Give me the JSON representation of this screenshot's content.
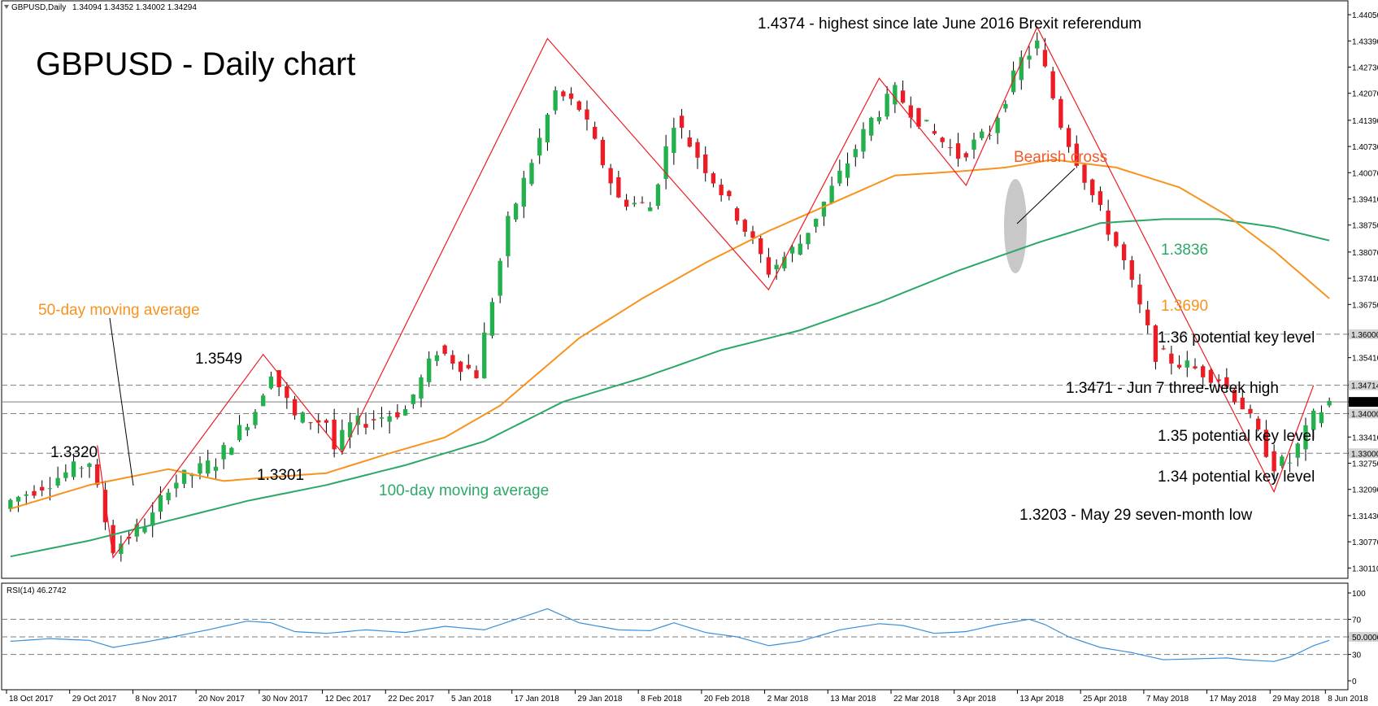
{
  "chart_data": {
    "type": "candlestick",
    "title": "GBPUSD - Daily chart",
    "header": {
      "symbol": "GBPUSD,Daily",
      "ohlc": "1.34094 1.34352 1.34002 1.34294",
      "rsi_label": "RSI(14) 46.2742"
    },
    "price_axis": {
      "ylim": [
        1.2985,
        1.444
      ],
      "ticks": [
        "1.44050",
        "1.43390",
        "1.42730",
        "1.42070",
        "1.41390",
        "1.40730",
        "1.40070",
        "1.39410",
        "1.38750",
        "1.38070",
        "1.37410",
        "1.36750",
        "1.36000",
        "1.35410",
        "1.34714",
        "1.34294",
        "1.34000",
        "1.33410",
        "1.33000",
        "1.32750",
        "1.32090",
        "1.31430",
        "1.30770",
        "1.30110"
      ],
      "ticks_values": [
        1.4405,
        1.4339,
        1.4273,
        1.4207,
        1.4139,
        1.4073,
        1.4007,
        1.3941,
        1.3875,
        1.3807,
        1.3741,
        1.3675,
        1.36,
        1.3541,
        1.34714,
        1.34294,
        1.34,
        1.3341,
        1.33,
        1.3275,
        1.3209,
        1.3143,
        1.3077,
        1.3011
      ],
      "boxed_labels": [
        "1.36000",
        "1.34714",
        "1.34294",
        "1.34000",
        "1.33000"
      ]
    },
    "rsi_axis": {
      "ylim": [
        0,
        100
      ],
      "ticks": [
        "100",
        "70",
        "50.0000",
        "30",
        "0"
      ],
      "ticks_values": [
        100,
        70,
        50,
        30,
        0
      ],
      "levels": [
        30,
        50,
        70
      ]
    },
    "x_labels": [
      "18 Oct 2017",
      "29 Oct 2017",
      "8 Nov 2017",
      "20 Nov 2017",
      "30 Nov 2017",
      "12 Dec 2017",
      "22 Dec 2017",
      "5 Jan 2018",
      "17 Jan 2018",
      "29 Jan 2018",
      "8 Feb 2018",
      "20 Feb 2018",
      "2 Mar 2018",
      "13 Mar 2018",
      "22 Mar 2018",
      "3 Apr 2018",
      "13 Apr 2018",
      "25 Apr 2018",
      "7 May 2018",
      "17 May 2018",
      "29 May 2018",
      "8 Jun 2018"
    ],
    "x_label_index": [
      0,
      8,
      16,
      24,
      32,
      40,
      48,
      56,
      64,
      72,
      80,
      88,
      96,
      104,
      112,
      120,
      128,
      136,
      144,
      152,
      160,
      168
    ],
    "bar_count": 168,
    "close_anchors": [
      [
        0,
        1.318
      ],
      [
        5,
        1.323
      ],
      [
        10,
        1.328
      ],
      [
        12,
        1.313
      ],
      [
        13,
        1.306
      ],
      [
        18,
        1.314
      ],
      [
        20,
        1.322
      ],
      [
        26,
        1.328
      ],
      [
        31,
        1.341
      ],
      [
        33,
        1.351
      ],
      [
        36,
        1.339
      ],
      [
        40,
        1.338
      ],
      [
        41,
        1.331
      ],
      [
        43,
        1.337
      ],
      [
        50,
        1.341
      ],
      [
        54,
        1.356
      ],
      [
        59,
        1.35
      ],
      [
        63,
        1.388
      ],
      [
        67,
        1.409
      ],
      [
        69,
        1.421
      ],
      [
        72,
        1.417
      ],
      [
        77,
        1.394
      ],
      [
        81,
        1.392
      ],
      [
        84,
        1.414
      ],
      [
        88,
        1.402
      ],
      [
        92,
        1.39
      ],
      [
        96,
        1.376
      ],
      [
        100,
        1.383
      ],
      [
        105,
        1.4
      ],
      [
        109,
        1.414
      ],
      [
        112,
        1.421
      ],
      [
        116,
        1.412
      ],
      [
        120,
        1.405
      ],
      [
        124,
        1.411
      ],
      [
        128,
        1.429
      ],
      [
        130,
        1.433
      ],
      [
        133,
        1.413
      ],
      [
        137,
        1.395
      ],
      [
        141,
        1.378
      ],
      [
        145,
        1.355
      ],
      [
        149,
        1.352
      ],
      [
        153,
        1.349
      ],
      [
        156,
        1.342
      ],
      [
        160,
        1.327
      ],
      [
        162,
        1.328
      ],
      [
        165,
        1.339
      ],
      [
        167,
        1.3429
      ]
    ],
    "ma50_anchors": [
      [
        0,
        1.316
      ],
      [
        10,
        1.322
      ],
      [
        20,
        1.326
      ],
      [
        27,
        1.323
      ],
      [
        33,
        1.324
      ],
      [
        40,
        1.325
      ],
      [
        48,
        1.33
      ],
      [
        55,
        1.334
      ],
      [
        62,
        1.342
      ],
      [
        72,
        1.359
      ],
      [
        80,
        1.369
      ],
      [
        88,
        1.378
      ],
      [
        96,
        1.386
      ],
      [
        104,
        1.393
      ],
      [
        112,
        1.4
      ],
      [
        120,
        1.401
      ],
      [
        126,
        1.402
      ],
      [
        132,
        1.404
      ],
      [
        140,
        1.402
      ],
      [
        148,
        1.397
      ],
      [
        154,
        1.39
      ],
      [
        160,
        1.381
      ],
      [
        167,
        1.369
      ]
    ],
    "ma100_anchors": [
      [
        0,
        1.304
      ],
      [
        10,
        1.308
      ],
      [
        20,
        1.313
      ],
      [
        30,
        1.318
      ],
      [
        40,
        1.322
      ],
      [
        50,
        1.327
      ],
      [
        60,
        1.333
      ],
      [
        70,
        1.343
      ],
      [
        80,
        1.349
      ],
      [
        90,
        1.356
      ],
      [
        100,
        1.361
      ],
      [
        110,
        1.368
      ],
      [
        120,
        1.376
      ],
      [
        130,
        1.383
      ],
      [
        138,
        1.388
      ],
      [
        146,
        1.389
      ],
      [
        153,
        1.389
      ],
      [
        160,
        1.387
      ],
      [
        167,
        1.3836
      ]
    ],
    "rsi_anchors": [
      [
        0,
        45
      ],
      [
        5,
        48
      ],
      [
        10,
        46
      ],
      [
        13,
        38
      ],
      [
        17,
        44
      ],
      [
        20,
        49
      ],
      [
        25,
        58
      ],
      [
        30,
        68
      ],
      [
        33,
        66
      ],
      [
        36,
        56
      ],
      [
        40,
        54
      ],
      [
        45,
        58
      ],
      [
        50,
        55
      ],
      [
        55,
        62
      ],
      [
        60,
        58
      ],
      [
        64,
        70
      ],
      [
        68,
        82
      ],
      [
        72,
        66
      ],
      [
        77,
        58
      ],
      [
        81,
        57
      ],
      [
        84,
        66
      ],
      [
        88,
        55
      ],
      [
        92,
        50
      ],
      [
        96,
        40
      ],
      [
        100,
        45
      ],
      [
        105,
        58
      ],
      [
        110,
        65
      ],
      [
        113,
        63
      ],
      [
        117,
        54
      ],
      [
        121,
        56
      ],
      [
        125,
        64
      ],
      [
        129,
        70
      ],
      [
        131,
        64
      ],
      [
        134,
        50
      ],
      [
        138,
        38
      ],
      [
        142,
        32
      ],
      [
        146,
        24
      ],
      [
        150,
        25
      ],
      [
        154,
        26
      ],
      [
        156,
        24
      ],
      [
        160,
        22
      ],
      [
        162,
        27
      ],
      [
        165,
        40
      ],
      [
        167,
        46
      ]
    ],
    "zigzag": [
      [
        11,
        1.332
      ],
      [
        13,
        1.3037
      ],
      [
        32,
        1.3549
      ],
      [
        42,
        1.3301
      ],
      [
        68,
        1.4345
      ],
      [
        96,
        1.3712
      ],
      [
        110,
        1.4245
      ],
      [
        121,
        1.3975
      ],
      [
        130,
        1.4374
      ],
      [
        160,
        1.3203
      ],
      [
        165,
        1.3471
      ]
    ],
    "horizontal_levels": [
      1.36,
      1.34714,
      1.34294,
      1.34,
      1.33
    ],
    "series": [
      {
        "name": "50-day moving average",
        "color": "#f7931e",
        "value": "1.3690"
      },
      {
        "name": "100-day moving average",
        "color": "#2ba866",
        "value": "1.3836"
      }
    ],
    "annotations": {
      "high": "1.4374 - highest since late June 2016 Brexit referendum",
      "bearish_cross": "Bearish cross",
      "ma100_value": "1.3836",
      "ma50_value": "1.3690",
      "level_136": "1.36 potential key level",
      "high_3w": "1.3471 - Jun 7 three-week high",
      "level_135": "1.35 potential key level",
      "level_134": "1.34 potential key level",
      "low_7m": "1.3203 - May 29 seven-month low",
      "p1320": "1.3320",
      "p13549": "1.3549",
      "p13301": "1.3301",
      "ma50_label": "50-day moving average",
      "ma100_label": "100-day moving average"
    },
    "colors": {
      "bull": "#22b14c",
      "bear": "#ed1c24",
      "zigzag": "#ed1c24",
      "rsi": "#3a8fd9",
      "ma50": "#f7931e",
      "ma100": "#2ba866",
      "bearish_cross_text": "#f05a28",
      "cross_ellipse": "#c8c8c8"
    }
  }
}
